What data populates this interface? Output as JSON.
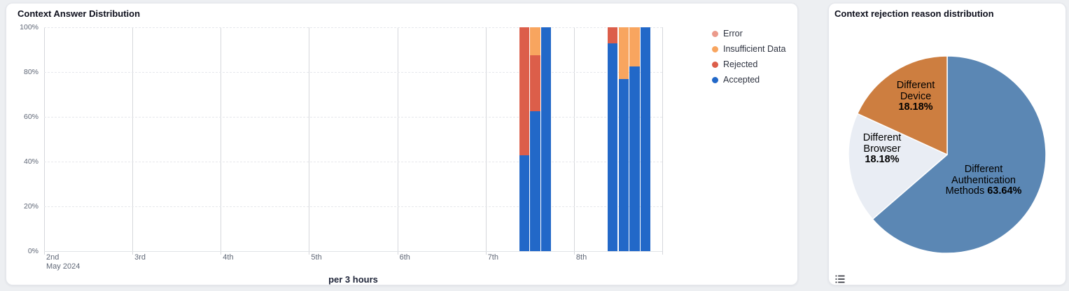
{
  "left_panel": {
    "title": "Context Answer Distribution",
    "x_axis_title": "per 3 hours",
    "legend": [
      {
        "label": "Error",
        "color": "#eb9a8b"
      },
      {
        "label": "Insufficient Data",
        "color": "#f8a55f"
      },
      {
        "label": "Rejected",
        "color": "#dc5e4a"
      },
      {
        "label": "Accepted",
        "color": "#2268c8"
      }
    ]
  },
  "right_panel": {
    "title": "Context rejection reason distribution",
    "pie_labels": {
      "device": {
        "line1": "Different",
        "line2": "Device",
        "pct": "18.18%"
      },
      "browser": {
        "line1": "Different",
        "line2": "Browser",
        "pct": "18.18%"
      },
      "auth": {
        "line1": "Different",
        "line2": "Authentication",
        "line3_prefix": "Methods ",
        "pct": "63.64%"
      }
    },
    "icons": {
      "bottom_left": "list-menu-icon"
    }
  },
  "chart_data": [
    {
      "type": "bar",
      "stacking": "percent",
      "title": "Context Answer Distribution",
      "xlabel": "per 3 hours",
      "x_axis": {
        "tick_labels": [
          "2nd",
          "3rd",
          "4th",
          "5th",
          "6th",
          "7th",
          "8th"
        ],
        "sub_label": "May 2024",
        "range": "May 2 2024 - May 9 2024",
        "bar_interval": "3 hours"
      },
      "y_axis": {
        "tick_labels": [
          "0%",
          "20%",
          "40%",
          "60%",
          "80%",
          "100%"
        ],
        "min": 0,
        "max": 100
      },
      "series_colors": {
        "accepted": "#2268c8",
        "rejected": "#dc5e4a",
        "insufficient_data": "#f8a55f",
        "error": "#eb9a8b"
      },
      "bars": [
        {
          "date": "May 7",
          "time": "09:00",
          "accepted": 42.9,
          "rejected": 57.1,
          "insufficient_data": 0,
          "error": 0
        },
        {
          "date": "May 7",
          "time": "12:00",
          "accepted": 62.5,
          "rejected": 25,
          "insufficient_data": 12.5,
          "error": 0
        },
        {
          "date": "May 7",
          "time": "15:00",
          "accepted": 100,
          "rejected": 0,
          "insufficient_data": 0,
          "error": 0
        },
        {
          "date": "May 8",
          "time": "09:00",
          "accepted": 92.9,
          "rejected": 7.1,
          "insufficient_data": 0,
          "error": 0
        },
        {
          "date": "May 8",
          "time": "12:00",
          "accepted": 77,
          "rejected": 0,
          "insufficient_data": 23,
          "error": 0
        },
        {
          "date": "May 8",
          "time": "15:00",
          "accepted": 82.5,
          "rejected": 0,
          "insufficient_data": 17.5,
          "error": 0
        },
        {
          "date": "May 8",
          "time": "18:00",
          "accepted": 100,
          "rejected": 0,
          "insufficient_data": 0,
          "error": 0
        }
      ]
    },
    {
      "type": "pie",
      "title": "Context rejection reason distribution",
      "slices": [
        {
          "label": "Different Authentication Methods",
          "value": 63.64,
          "color": "#5b87b4"
        },
        {
          "label": "Different Browser",
          "value": 18.18,
          "color": "#e9edf4"
        },
        {
          "label": "Different Device",
          "value": 18.18,
          "color": "#cd7e40"
        }
      ],
      "start_angle": 0,
      "direction": "clockwise"
    }
  ]
}
